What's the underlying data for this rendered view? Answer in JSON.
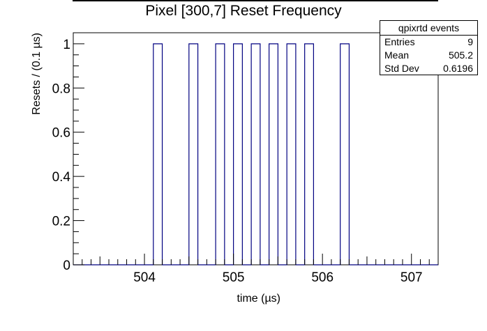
{
  "chart_data": {
    "type": "bar",
    "title": "Pixel [300,7] Reset Frequency",
    "xlabel": "time (µs)",
    "ylabel": "Resets / (0.1 µs)",
    "xlim": [
      503.2,
      507.3
    ],
    "ylim": [
      0,
      1.05
    ],
    "bin_width": 0.1,
    "x_ticks": [
      504,
      505,
      506,
      507
    ],
    "x_tick_labels": [
      "504",
      "505",
      "506",
      "507"
    ],
    "y_ticks": [
      0,
      0.2,
      0.4,
      0.6,
      0.8,
      1
    ],
    "y_tick_labels": [
      "0",
      "0.2",
      "0.4",
      "0.6",
      "0.8",
      "1"
    ],
    "bins": [
      {
        "low": 504.1,
        "high": 504.2,
        "value": 1
      },
      {
        "low": 504.5,
        "high": 504.6,
        "value": 1
      },
      {
        "low": 504.8,
        "high": 504.9,
        "value": 1
      },
      {
        "low": 505.0,
        "high": 505.1,
        "value": 1
      },
      {
        "low": 505.2,
        "high": 505.3,
        "value": 1
      },
      {
        "low": 505.4,
        "high": 505.5,
        "value": 1
      },
      {
        "low": 505.6,
        "high": 505.7,
        "value": 1
      },
      {
        "low": 505.8,
        "high": 505.9,
        "value": 1
      },
      {
        "low": 506.2,
        "high": 506.3,
        "value": 1
      }
    ],
    "line_color": "#000080",
    "grid": false,
    "legend_position": "top-right"
  },
  "stats": {
    "title": "qpixrtd events",
    "rows": [
      {
        "label": "Entries",
        "value": "9"
      },
      {
        "label": "Mean",
        "value": "505.2"
      },
      {
        "label": "Std Dev",
        "value": "0.6196"
      }
    ]
  }
}
